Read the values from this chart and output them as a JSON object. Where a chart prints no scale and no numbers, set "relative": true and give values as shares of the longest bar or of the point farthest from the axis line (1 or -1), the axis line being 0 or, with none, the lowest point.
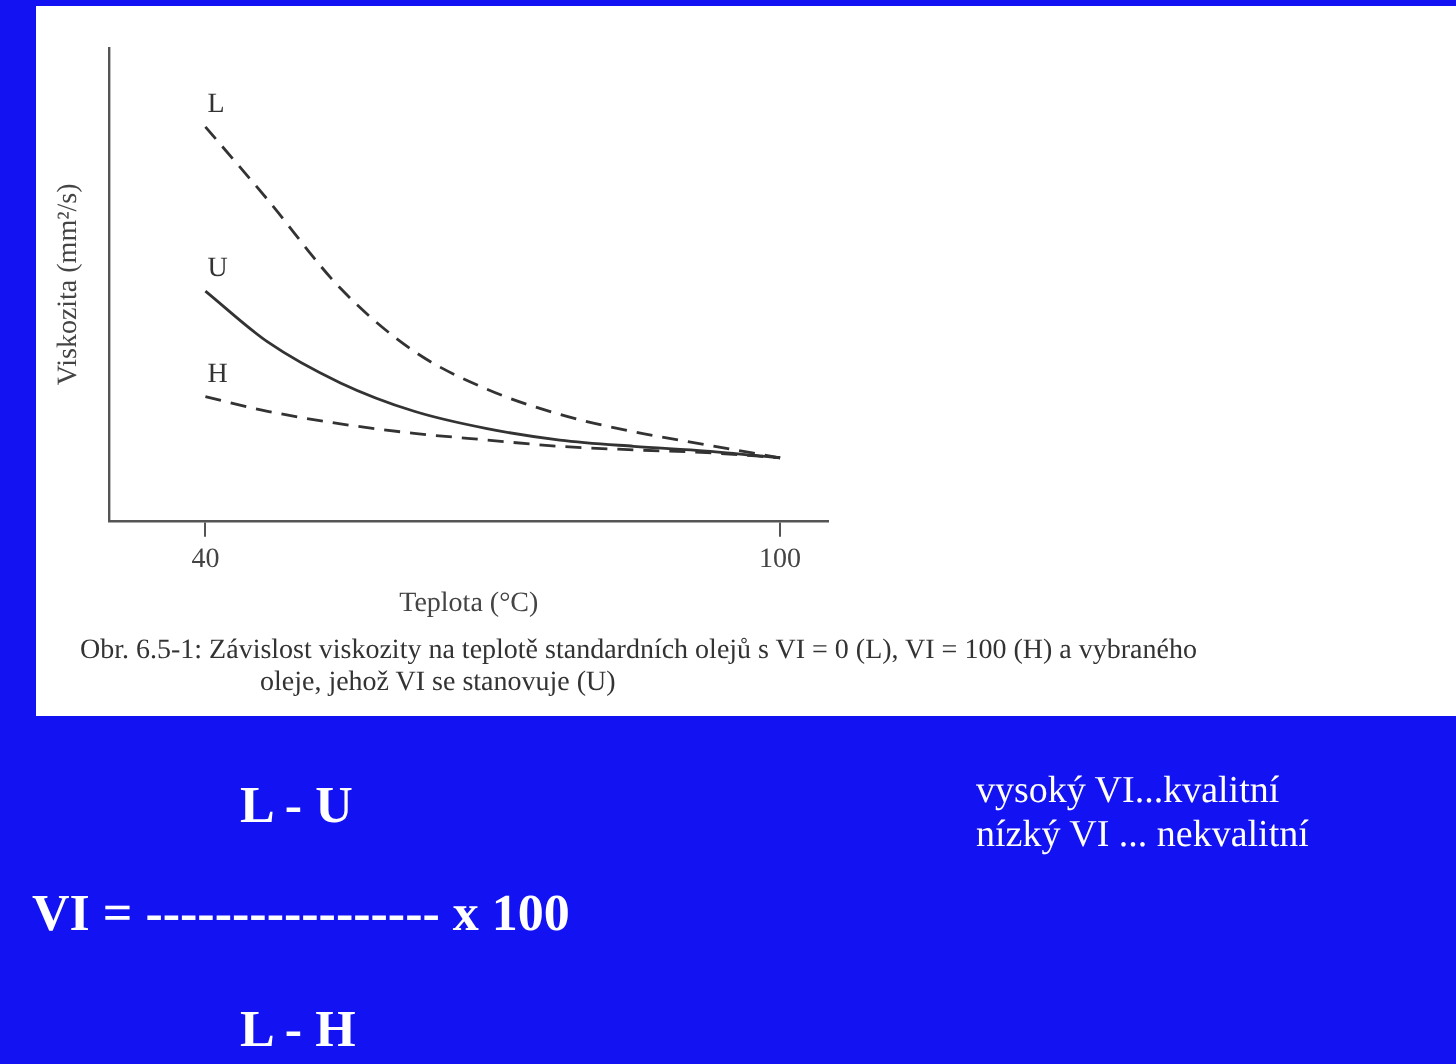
{
  "chart_data": {
    "type": "line",
    "relative": true,
    "xlabel": "Teplota (°C)",
    "ylabel": "Viskozita (mm²/s)",
    "xlim": [
      30,
      105
    ],
    "xticks": [
      40,
      100
    ],
    "grid": false,
    "legend": false,
    "marker": "none",
    "x": [
      40,
      46.5,
      54.1,
      61.8,
      69.4,
      77,
      84.7,
      92.3,
      100
    ],
    "series": [
      {
        "name": "L",
        "color": "#333333",
        "line_style": "dashed",
        "values": [
          1,
          0.815,
          0.59,
          0.43,
          0.334,
          0.27,
          0.226,
          0.193,
          0.16
        ]
      },
      {
        "name": "U",
        "color": "#333333",
        "line_style": "solid",
        "values": [
          0.583,
          0.454,
          0.35,
          0.278,
          0.234,
          0.205,
          0.189,
          0.177,
          0.16
        ]
      },
      {
        "name": "H",
        "color": "#333333",
        "line_style": "dashed",
        "values": [
          0.315,
          0.278,
          0.246,
          0.222,
          0.205,
          0.189,
          0.18,
          0.173,
          0.16
        ]
      }
    ],
    "annotations": [
      "Obr. 6.5-1: Závislost viskozity na teplotě standardních olejů s VI = 0 (L), VI = 100 (H) a vybraného oleje, jehož VI se stanovuje (U)",
      "L - U",
      "VI = ----------------- x  100",
      "L - H",
      "vysoký VI...kvalitní",
      "nízký VI ... nekvalitní"
    ]
  }
}
